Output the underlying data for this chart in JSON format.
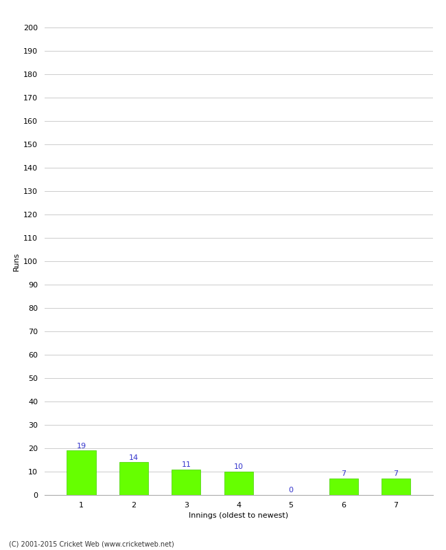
{
  "categories": [
    1,
    2,
    3,
    4,
    5,
    6,
    7
  ],
  "values": [
    19,
    14,
    11,
    10,
    0,
    7,
    7
  ],
  "bar_color": "#66ff00",
  "bar_edge_color": "#44cc00",
  "ylabel": "Runs",
  "xlabel": "Innings (oldest to newest)",
  "ylim": [
    0,
    200
  ],
  "yticks": [
    0,
    10,
    20,
    30,
    40,
    50,
    60,
    70,
    80,
    90,
    100,
    110,
    120,
    130,
    140,
    150,
    160,
    170,
    180,
    190,
    200
  ],
  "label_color": "#3333cc",
  "footnote": "(C) 2001-2015 Cricket Web (www.cricketweb.net)",
  "background_color": "#ffffff",
  "grid_color": "#cccccc",
  "label_fontsize": 8,
  "axis_fontsize": 8,
  "ylabel_fontsize": 8,
  "footnote_fontsize": 7,
  "bar_width": 0.55
}
